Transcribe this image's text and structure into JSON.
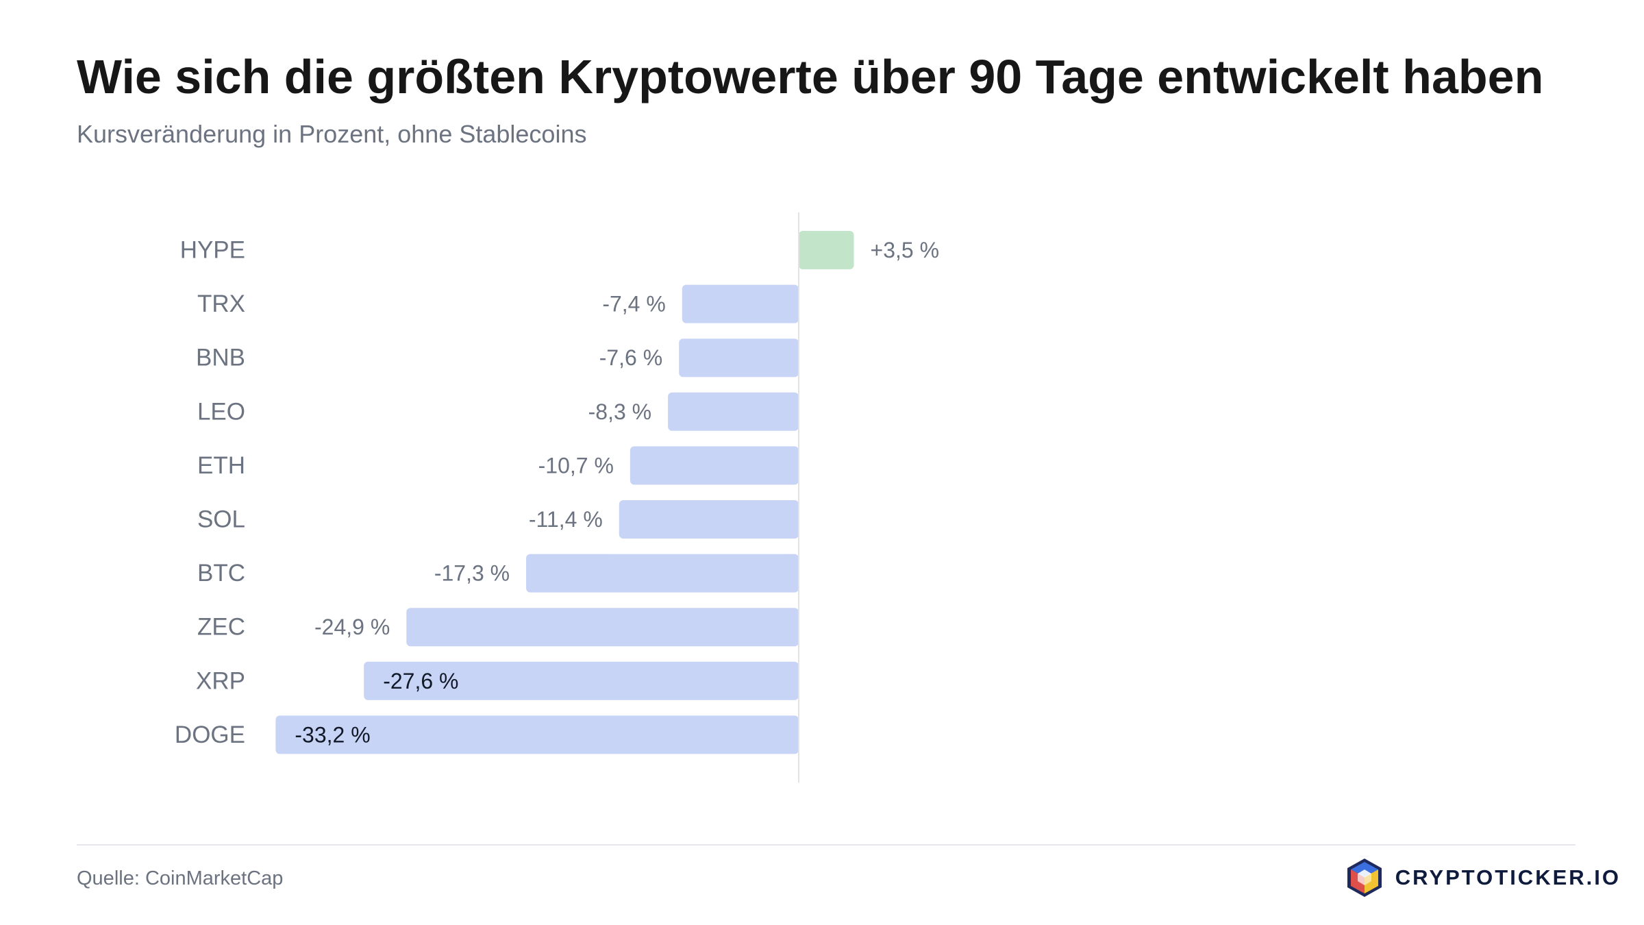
{
  "header": {
    "title": "Wie sich die größten Kryptowerte über 90 Tage entwickelt haben",
    "subtitle": "Kursveränderung in Prozent, ohne Stablecoins"
  },
  "footer": {
    "source": "Quelle: CoinMarketCap",
    "brand": "CRYPTOTICKER.IO",
    "brand_logo_icon": "cube-logo-icon"
  },
  "colors": {
    "positive": "#c2e5c9",
    "negative": "#c8d4f5",
    "zero_line": "#e3e3e3"
  },
  "chart_data": {
    "type": "bar",
    "orientation": "horizontal",
    "title": "Wie sich die größten Kryptowerte über 90 Tage entwickelt haben",
    "subtitle": "Kursveränderung in Prozent, ohne Stablecoins",
    "categories": [
      "HYPE",
      "TRX",
      "BNB",
      "LEO",
      "ETH",
      "SOL",
      "BTC",
      "ZEC",
      "XRP",
      "DOGE"
    ],
    "values": [
      3.5,
      -7.4,
      -7.6,
      -8.3,
      -10.7,
      -11.4,
      -17.3,
      -24.9,
      -27.6,
      -33.2
    ],
    "value_labels": [
      "+3,5 %",
      "-7,4 %",
      "-7,6 %",
      "-8,3 %",
      "-10,7 %",
      "-11,4 %",
      "-17,3 %",
      "-24,9 %",
      "-27,6 %",
      "-33,2 %"
    ],
    "grid": false,
    "legend": "none"
  }
}
